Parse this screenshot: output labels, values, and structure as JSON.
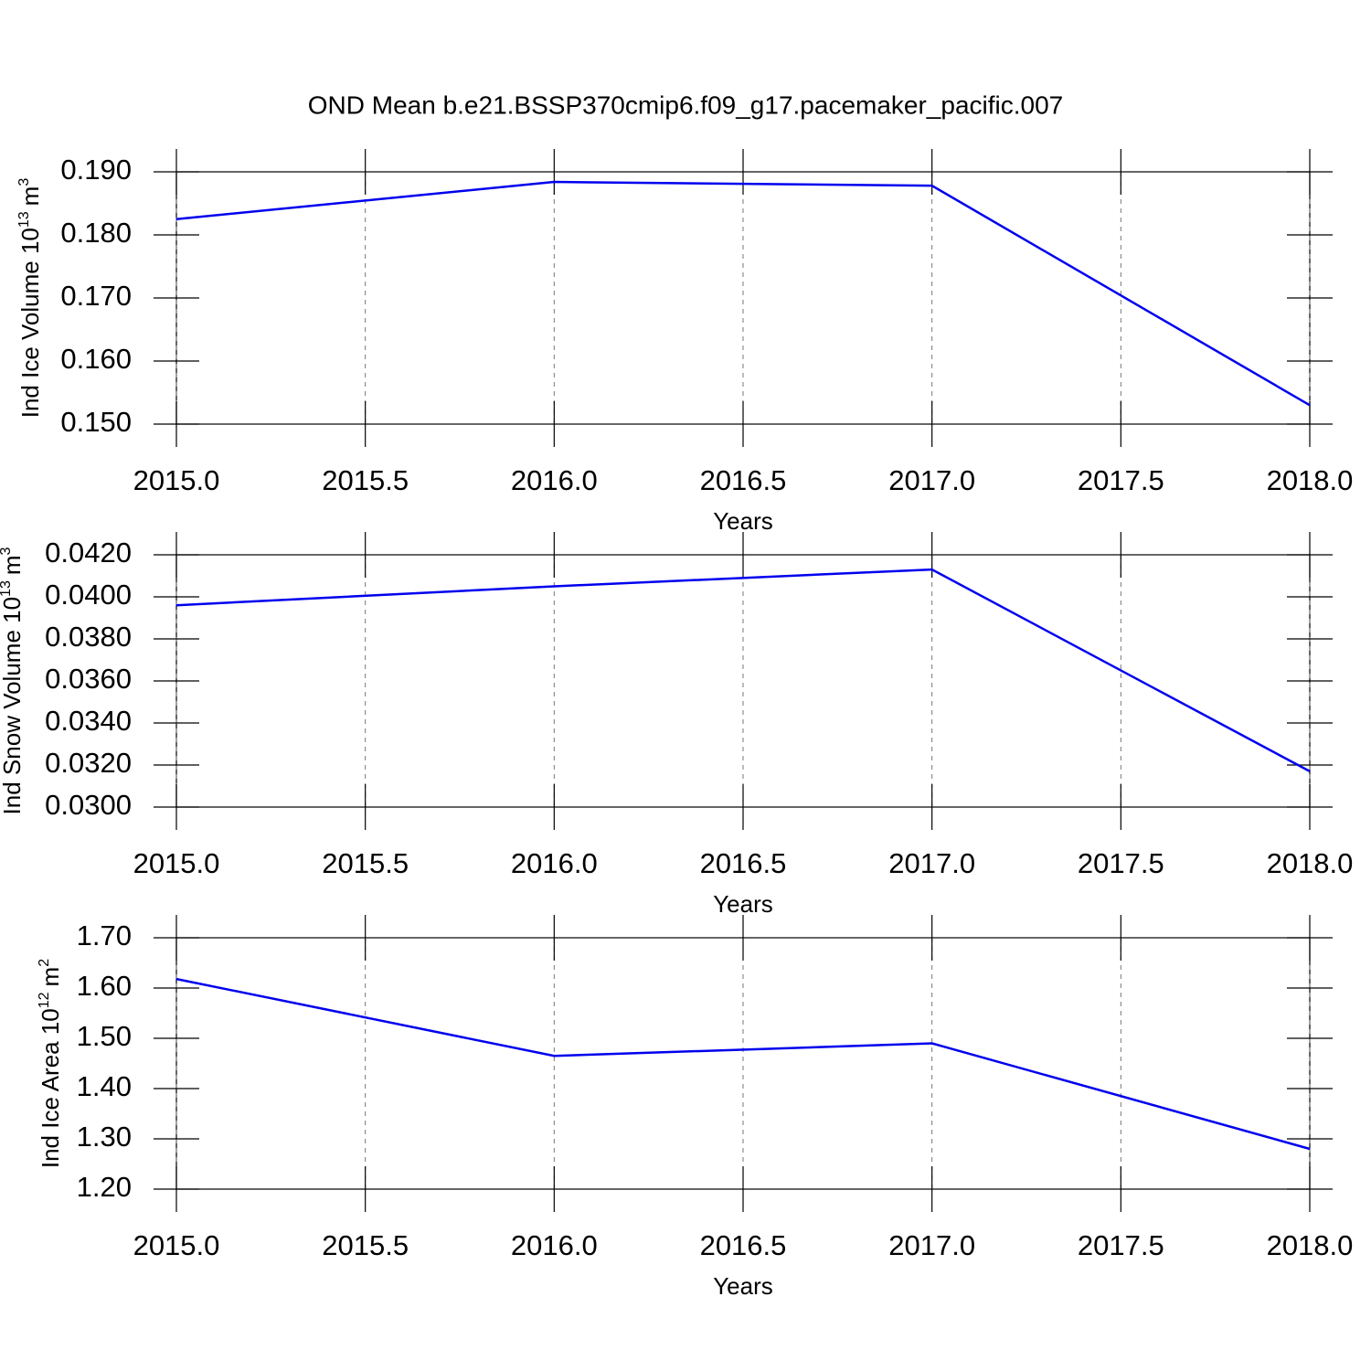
{
  "title": "OND Mean b.e21.BSSP370cmip6.f09_g17.pacemaker_pacific.007",
  "chart_data": [
    {
      "type": "line",
      "xlabel": "Years",
      "ylabel": {
        "text": "Ind Ice Volume 10",
        "exponent": "13",
        "unit": "m",
        "unit_exponent": "3"
      },
      "x": [
        2015,
        2016,
        2017,
        2018
      ],
      "values": [
        0.1825,
        0.1884,
        0.1878,
        0.153
      ],
      "color": "#0000ee",
      "xlim": [
        2015,
        2018
      ],
      "xticks": [
        {
          "value": 2015,
          "label": "2015.0"
        },
        {
          "value": 2015.5,
          "label": "2015.5"
        },
        {
          "value": 2016,
          "label": "2016.0"
        },
        {
          "value": 2016.5,
          "label": "2016.5"
        },
        {
          "value": 2017,
          "label": "2017.0"
        },
        {
          "value": 2017.5,
          "label": "2017.5"
        },
        {
          "value": 2018,
          "label": "2018.0"
        }
      ],
      "ylim": [
        0.15,
        0.19
      ],
      "yticks": [
        {
          "value": 0.15,
          "label": "0.150"
        },
        {
          "value": 0.16,
          "label": "0.160"
        },
        {
          "value": 0.17,
          "label": "0.170"
        },
        {
          "value": 0.18,
          "label": "0.180"
        },
        {
          "value": 0.19,
          "label": "0.190"
        }
      ],
      "xgrid": true
    },
    {
      "type": "line",
      "xlabel": "Years",
      "ylabel": {
        "text": "Ind Snow Volume 10",
        "exponent": "13",
        "unit": "m",
        "unit_exponent": "3"
      },
      "x": [
        2015,
        2016,
        2017,
        2018
      ],
      "values": [
        0.0396,
        0.0405,
        0.0413,
        0.0317
      ],
      "color": "#0000ee",
      "xlim": [
        2015,
        2018
      ],
      "xticks": [
        {
          "value": 2015,
          "label": "2015.0"
        },
        {
          "value": 2015.5,
          "label": "2015.5"
        },
        {
          "value": 2016,
          "label": "2016.0"
        },
        {
          "value": 2016.5,
          "label": "2016.5"
        },
        {
          "value": 2017,
          "label": "2017.0"
        },
        {
          "value": 2017.5,
          "label": "2017.5"
        },
        {
          "value": 2018,
          "label": "2018.0"
        }
      ],
      "ylim": [
        0.03,
        0.042
      ],
      "yticks": [
        {
          "value": 0.03,
          "label": "0.0300"
        },
        {
          "value": 0.032,
          "label": "0.0320"
        },
        {
          "value": 0.034,
          "label": "0.0340"
        },
        {
          "value": 0.036,
          "label": "0.0360"
        },
        {
          "value": 0.038,
          "label": "0.0380"
        },
        {
          "value": 0.04,
          "label": "0.0400"
        },
        {
          "value": 0.042,
          "label": "0.0420"
        }
      ],
      "xgrid": true
    },
    {
      "type": "line",
      "xlabel": "Years",
      "ylabel": {
        "text": "Ind Ice Area 10",
        "exponent": "12",
        "unit": "m",
        "unit_exponent": "2"
      },
      "x": [
        2015,
        2016,
        2017,
        2018
      ],
      "values": [
        1.618,
        1.465,
        1.49,
        1.28
      ],
      "color": "#0000ee",
      "xlim": [
        2015,
        2018
      ],
      "xticks": [
        {
          "value": 2015,
          "label": "2015.0"
        },
        {
          "value": 2015.5,
          "label": "2015.5"
        },
        {
          "value": 2016,
          "label": "2016.0"
        },
        {
          "value": 2016.5,
          "label": "2016.5"
        },
        {
          "value": 2017,
          "label": "2017.0"
        },
        {
          "value": 2017.5,
          "label": "2017.5"
        },
        {
          "value": 2018,
          "label": "2018.0"
        }
      ],
      "ylim": [
        1.2,
        1.7
      ],
      "yticks": [
        {
          "value": 1.2,
          "label": "1.20"
        },
        {
          "value": 1.3,
          "label": "1.30"
        },
        {
          "value": 1.4,
          "label": "1.40"
        },
        {
          "value": 1.5,
          "label": "1.50"
        },
        {
          "value": 1.6,
          "label": "1.60"
        },
        {
          "value": 1.7,
          "label": "1.70"
        }
      ],
      "xgrid": true
    }
  ]
}
